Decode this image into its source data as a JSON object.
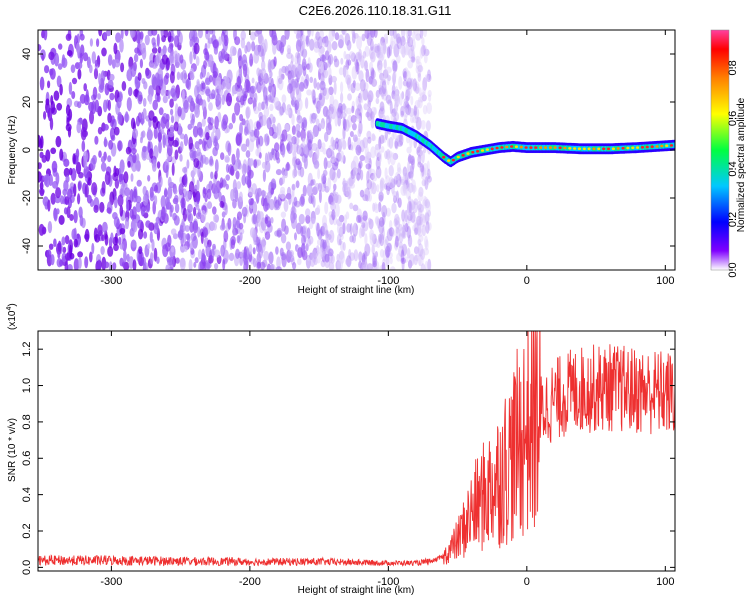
{
  "page": {
    "title": "C2E6.2026.110.18.31.G11"
  },
  "chart_data": [
    {
      "type": "heatmap",
      "name": "spectrogram",
      "xlabel": "Height of straight line (km)",
      "ylabel": "Frequency (Hz)",
      "xlim": [
        -353,
        107
      ],
      "ylim": [
        -50,
        50
      ],
      "x_ticks": [
        -300,
        -200,
        -100,
        0,
        100
      ],
      "x_tick_labels": [
        "-300",
        "-200",
        "-100",
        "0",
        "100"
      ],
      "y_ticks": [
        -40,
        -20,
        0,
        20,
        40
      ],
      "y_tick_labels": [
        "-40",
        "-20",
        "0",
        "20",
        "40"
      ],
      "noise_region_x": [
        -353,
        -70
      ],
      "ridge_x": [
        -108,
        -100,
        -90,
        -80,
        -70,
        -60,
        -55,
        -50,
        -40,
        -30,
        -20,
        -10,
        0,
        20,
        40,
        60,
        80,
        107
      ],
      "ridge_frequency": [
        11,
        10,
        9,
        6,
        2,
        -3,
        -5,
        -3,
        -1,
        0,
        1,
        1.5,
        1,
        1,
        0.5,
        0.5,
        1,
        2
      ]
    },
    {
      "type": "colorbar",
      "name": "amplitude-scale",
      "label": "Normalized spectral amplitude",
      "range": [
        0,
        0.95
      ],
      "ticks": [
        0.0,
        0.2,
        0.4,
        0.6,
        0.8
      ],
      "tick_labels": [
        "0.0",
        "0.2",
        "0.4",
        "0.6",
        "0.8"
      ],
      "colors": [
        "#ffffff",
        "#8000ff",
        "#0000ff",
        "#00c8ff",
        "#00ff40",
        "#ffff00",
        "#ff8000",
        "#ff0000",
        "#ff40a0"
      ]
    },
    {
      "type": "line",
      "name": "snr-series",
      "xlabel": "Height of straight line (km)",
      "ylabel": "SNR (10 * v/v)",
      "multiplier_label": "(x10",
      "multiplier_exp": "4",
      "multiplier_close": ")",
      "xlim": [
        -353,
        107
      ],
      "ylim": [
        -0.02,
        1.3
      ],
      "x_ticks": [
        -300,
        -200,
        -100,
        0,
        100
      ],
      "x_tick_labels": [
        "-300",
        "-200",
        "-100",
        "0",
        "100"
      ],
      "y_ticks": [
        0.0,
        0.2,
        0.4,
        0.6,
        0.8,
        1.0,
        1.2
      ],
      "y_tick_labels": [
        "0.0",
        "0.2",
        "0.4",
        "0.6",
        "0.8",
        "1.0",
        "1.2"
      ],
      "color": "#ee3030",
      "envelope_x": [
        -353,
        -300,
        -200,
        -150,
        -100,
        -80,
        -70,
        -60,
        -55,
        -50,
        -45,
        -40,
        -35,
        -30,
        -20,
        -10,
        0,
        10,
        20,
        30,
        40,
        60,
        80,
        100,
        107
      ],
      "envelope_y": [
        0.04,
        0.04,
        0.03,
        0.03,
        0.02,
        0.02,
        0.03,
        0.06,
        0.1,
        0.15,
        0.22,
        0.3,
        0.35,
        0.4,
        0.5,
        0.62,
        0.78,
        0.86,
        0.92,
        0.96,
        0.98,
        0.99,
        0.97,
        0.96,
        0.95
      ]
    }
  ]
}
